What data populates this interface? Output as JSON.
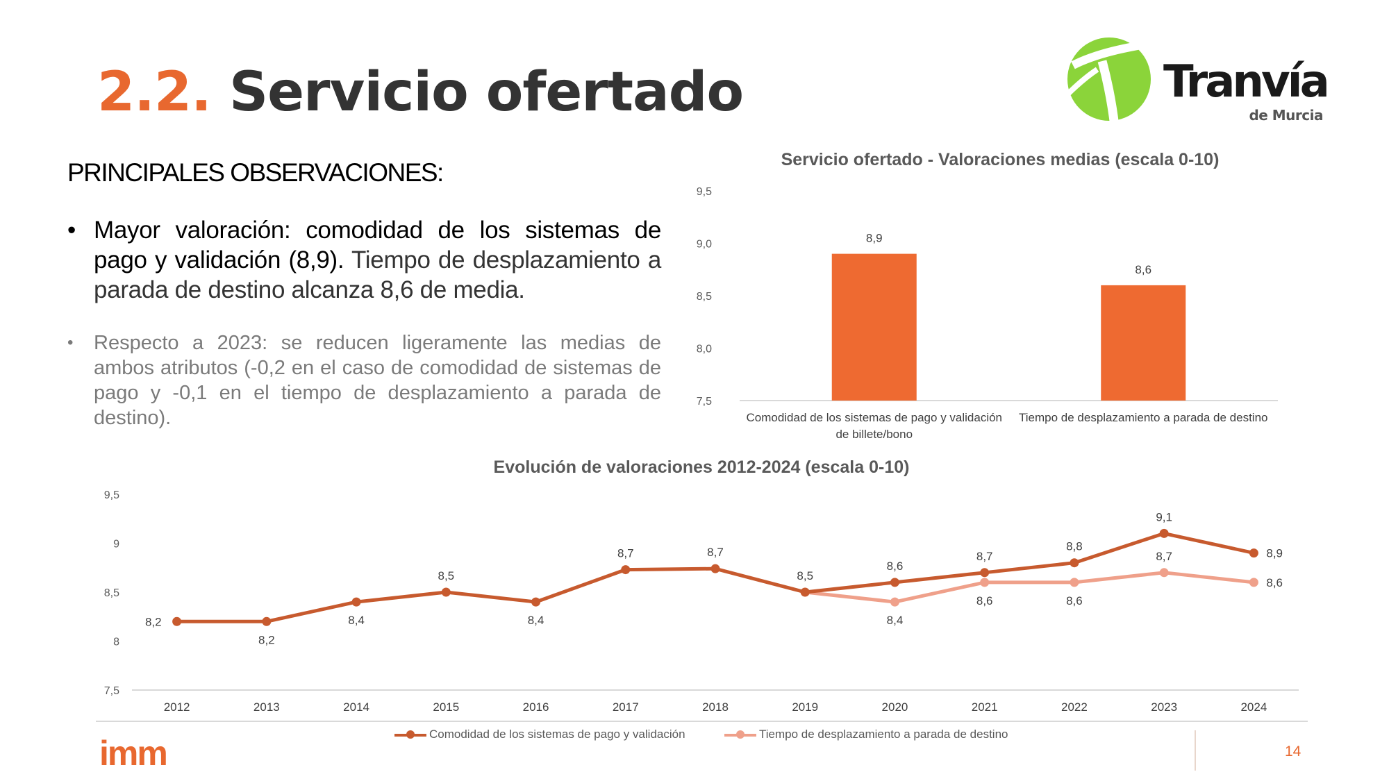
{
  "slide": {
    "number": "2.2.",
    "title": "Servicio ofertado",
    "page_number": "14"
  },
  "logos": {
    "brand_name": "Tranvía",
    "brand_sub": "de Murcia",
    "footer_brand": "imm"
  },
  "observations": {
    "heading": "PRINCIPALES OBSERVACIONES:",
    "bullet1_lead": "Mayor valoración: comodidad de los sistemas de pago y validación (8,9).",
    "bullet1_rest": " Tiempo de desplazamiento a parada de destino alcanza 8,6 de media.",
    "bullet2": "Respecto a 2023: se reducen ligeramente las medias de ambos atributos (-0,2 en el caso de comodidad de sistemas de pago y -0,1 en el tiempo de desplazamiento a parada de destino)."
  },
  "colors": {
    "accent": "#E8682F",
    "bar": "#EE6A31",
    "series1": "#C75A2E",
    "series2": "#EFA08A",
    "logo_green": "#8BD43A"
  },
  "chart_data": [
    {
      "type": "bar",
      "title": "Servicio ofertado - Valoraciones medias (escala 0-10)",
      "categories": [
        "Comodidad de los sistemas de pago y validación de billete/bono",
        "Tiempo de desplazamiento a parada de destino"
      ],
      "values": [
        8.9,
        8.6
      ],
      "value_labels": [
        "8,9",
        "8,6"
      ],
      "ylim": [
        7.5,
        9.5
      ],
      "yticks": [
        "7,5",
        "8,0",
        "8,5",
        "9,0",
        "9,5"
      ],
      "grid": false,
      "legend": false
    },
    {
      "type": "line",
      "title": "Evolución de valoraciones 2012-2024 (escala 0-10)",
      "x": [
        "2012",
        "2013",
        "2014",
        "2015",
        "2016",
        "2017",
        "2018",
        "2019",
        "2020",
        "2021",
        "2022",
        "2023",
        "2024"
      ],
      "ylim": [
        7.5,
        9.5
      ],
      "yticks": [
        "7,5",
        "8",
        "8,5",
        "9",
        "9,5"
      ],
      "grid": false,
      "legend_position": "bottom",
      "series": [
        {
          "name": "Comodidad de los sistemas de pago y validación",
          "values": [
            8.2,
            8.2,
            8.4,
            8.5,
            8.4,
            8.73,
            8.74,
            8.5,
            8.6,
            8.7,
            8.8,
            9.1,
            8.9
          ],
          "labels": [
            "8,2",
            "8,2",
            "8,4",
            "8,5",
            "8,4",
            "8,7",
            "8,7",
            "8,5",
            "8,6",
            "8,7",
            "8,8",
            "9,1",
            "8,9"
          ]
        },
        {
          "name": "Tiempo de desplazamiento a parada de destino",
          "values": [
            null,
            null,
            null,
            null,
            null,
            null,
            null,
            8.5,
            8.4,
            8.6,
            8.6,
            8.7,
            8.6
          ],
          "labels": [
            null,
            null,
            null,
            null,
            null,
            null,
            null,
            null,
            "8,4",
            "8,6",
            "8,6",
            "8,7",
            "8,6"
          ]
        }
      ]
    }
  ]
}
